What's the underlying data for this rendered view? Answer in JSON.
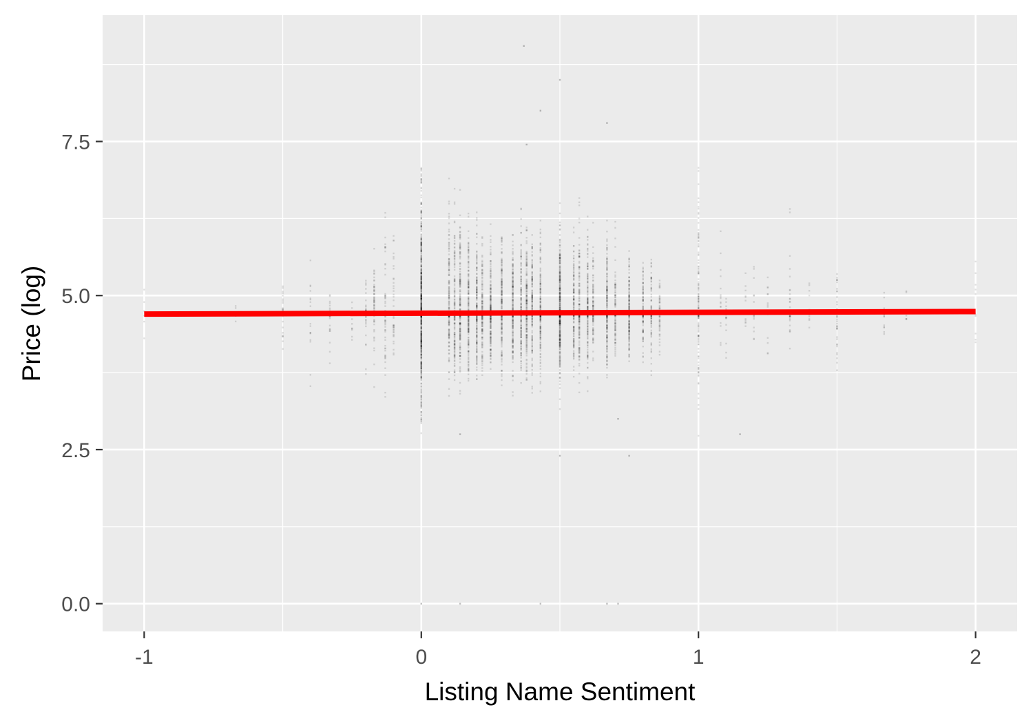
{
  "chart_data": {
    "type": "scatter",
    "xlabel": "Listing Name Sentiment",
    "ylabel": "Price (log)",
    "xlim": [
      -1.15,
      2.15
    ],
    "ylim": [
      -0.45,
      9.55
    ],
    "x_ticks": [
      -1,
      0,
      1,
      2
    ],
    "x_tick_labels": [
      "-1",
      "0",
      "1",
      "2"
    ],
    "y_ticks": [
      0,
      2.5,
      5,
      7.5
    ],
    "y_tick_labels": [
      "0.0",
      "2.5",
      "5.0",
      "7.5"
    ],
    "x_minor_ticks": [
      -0.5,
      0.5,
      1.5
    ],
    "y_minor_ticks": [
      1.25,
      3.75,
      6.25,
      8.75
    ],
    "grid": true,
    "legend": "none",
    "colors": {
      "panel": "#ebebeb",
      "grid": "#ffffff",
      "points": "#000000",
      "fit_line": "#ff0000",
      "tick_label": "#4d4d4d"
    },
    "point_alpha": 0.12,
    "fit_line": {
      "x": [
        -1,
        2
      ],
      "y": [
        4.7,
        4.74
      ]
    },
    "columns": [
      {
        "x": -1.0,
        "y_min": 4.0,
        "y_max": 5.8,
        "n": 6
      },
      {
        "x": -0.67,
        "y_min": 3.8,
        "y_max": 4.85,
        "n": 4
      },
      {
        "x": -0.5,
        "y_min": 3.4,
        "y_max": 5.3,
        "n": 25
      },
      {
        "x": -0.4,
        "y_min": 3.3,
        "y_max": 5.8,
        "n": 18
      },
      {
        "x": -0.33,
        "y_min": 3.6,
        "y_max": 5.4,
        "n": 25
      },
      {
        "x": -0.25,
        "y_min": 3.7,
        "y_max": 5.0,
        "n": 15
      },
      {
        "x": -0.2,
        "y_min": 3.6,
        "y_max": 5.5,
        "n": 30
      },
      {
        "x": -0.17,
        "y_min": 3.2,
        "y_max": 5.8,
        "n": 60
      },
      {
        "x": -0.13,
        "y_min": 3.0,
        "y_max": 6.6,
        "n": 60
      },
      {
        "x": -0.1,
        "y_min": 3.5,
        "y_max": 6.6,
        "n": 40
      },
      {
        "x": 0.0,
        "y_min": 2.4,
        "y_max": 7.3,
        "n": 700
      },
      {
        "x": 0.1,
        "y_min": 3.2,
        "y_max": 6.9,
        "n": 150
      },
      {
        "x": 0.12,
        "y_min": 3.2,
        "y_max": 7.0,
        "n": 150
      },
      {
        "x": 0.14,
        "y_min": 3.1,
        "y_max": 6.8,
        "n": 180
      },
      {
        "x": 0.17,
        "y_min": 3.2,
        "y_max": 6.6,
        "n": 200
      },
      {
        "x": 0.2,
        "y_min": 3.3,
        "y_max": 6.5,
        "n": 180
      },
      {
        "x": 0.22,
        "y_min": 3.3,
        "y_max": 6.3,
        "n": 150
      },
      {
        "x": 0.25,
        "y_min": 3.4,
        "y_max": 6.2,
        "n": 200
      },
      {
        "x": 0.29,
        "y_min": 3.2,
        "y_max": 6.2,
        "n": 180
      },
      {
        "x": 0.33,
        "y_min": 3.2,
        "y_max": 6.3,
        "n": 200
      },
      {
        "x": 0.36,
        "y_min": 3.3,
        "y_max": 6.5,
        "n": 150
      },
      {
        "x": 0.38,
        "y_min": 3.2,
        "y_max": 6.6,
        "n": 200
      },
      {
        "x": 0.4,
        "y_min": 3.2,
        "y_max": 6.4,
        "n": 150
      },
      {
        "x": 0.43,
        "y_min": 3.2,
        "y_max": 6.5,
        "n": 180
      },
      {
        "x": 0.5,
        "y_min": 3.0,
        "y_max": 6.5,
        "n": 400
      },
      {
        "x": 0.55,
        "y_min": 3.3,
        "y_max": 6.2,
        "n": 150
      },
      {
        "x": 0.57,
        "y_min": 3.3,
        "y_max": 6.8,
        "n": 150
      },
      {
        "x": 0.6,
        "y_min": 3.2,
        "y_max": 6.5,
        "n": 150
      },
      {
        "x": 0.62,
        "y_min": 3.5,
        "y_max": 6.3,
        "n": 100
      },
      {
        "x": 0.67,
        "y_min": 3.3,
        "y_max": 6.5,
        "n": 180
      },
      {
        "x": 0.7,
        "y_min": 3.5,
        "y_max": 6.2,
        "n": 100
      },
      {
        "x": 0.75,
        "y_min": 3.5,
        "y_max": 6.0,
        "n": 150
      },
      {
        "x": 0.8,
        "y_min": 3.5,
        "y_max": 5.8,
        "n": 100
      },
      {
        "x": 0.83,
        "y_min": 3.6,
        "y_max": 5.8,
        "n": 80
      },
      {
        "x": 0.86,
        "y_min": 3.7,
        "y_max": 5.4,
        "n": 60
      },
      {
        "x": 1.0,
        "y_min": 2.6,
        "y_max": 7.2,
        "n": 150
      },
      {
        "x": 1.08,
        "y_min": 3.8,
        "y_max": 6.3,
        "n": 20
      },
      {
        "x": 1.1,
        "y_min": 3.8,
        "y_max": 5.2,
        "n": 15
      },
      {
        "x": 1.17,
        "y_min": 4.2,
        "y_max": 5.9,
        "n": 15
      },
      {
        "x": 1.2,
        "y_min": 4.0,
        "y_max": 5.7,
        "n": 15
      },
      {
        "x": 1.25,
        "y_min": 3.5,
        "y_max": 5.7,
        "n": 15
      },
      {
        "x": 1.33,
        "y_min": 3.5,
        "y_max": 6.9,
        "n": 30
      },
      {
        "x": 1.4,
        "y_min": 4.3,
        "y_max": 6.4,
        "n": 10
      },
      {
        "x": 1.5,
        "y_min": 3.4,
        "y_max": 5.8,
        "n": 40
      },
      {
        "x": 1.67,
        "y_min": 4.0,
        "y_max": 5.6,
        "n": 12
      },
      {
        "x": 1.75,
        "y_min": 4.2,
        "y_max": 5.3,
        "n": 6
      },
      {
        "x": 2.0,
        "y_min": 3.6,
        "y_max": 5.9,
        "n": 10
      }
    ],
    "outliers": [
      {
        "x": 0.37,
        "y": 9.05
      },
      {
        "x": 0.5,
        "y": 8.5
      },
      {
        "x": 0.43,
        "y": 8.0
      },
      {
        "x": 0.67,
        "y": 7.8
      },
      {
        "x": 0.38,
        "y": 7.45
      },
      {
        "x": 0.75,
        "y": 2.4
      },
      {
        "x": 0.5,
        "y": 2.4
      },
      {
        "x": 0.14,
        "y": 2.75
      },
      {
        "x": 1.15,
        "y": 2.75
      },
      {
        "x": 0.71,
        "y": 3.0
      },
      {
        "x": 0.0,
        "y": 0.0
      },
      {
        "x": 0.14,
        "y": 0.0
      },
      {
        "x": 0.43,
        "y": 0.0
      },
      {
        "x": 0.67,
        "y": 0.0
      },
      {
        "x": 0.71,
        "y": 0.0
      }
    ]
  }
}
